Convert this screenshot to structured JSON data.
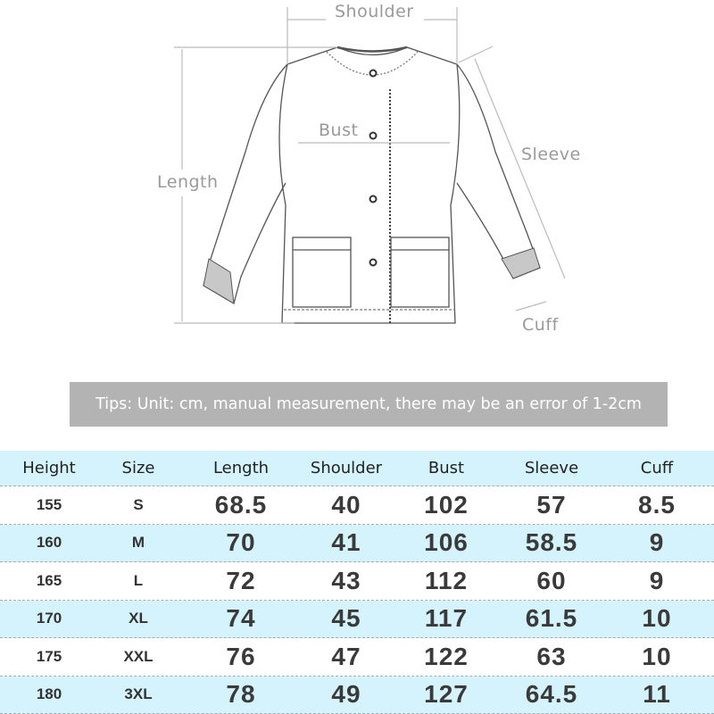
{
  "diagram": {
    "labels": {
      "shoulder": "Shoulder",
      "bust": "Bust",
      "length": "Length",
      "sleeve": "Sleeve",
      "cuff": "Cuff"
    }
  },
  "tips": "Tips: Unit: cm, manual measurement, there may be an error of 1-2cm",
  "table": {
    "headers": [
      "Height",
      "Size",
      "Length",
      "Shoulder",
      "Bust",
      "Sleeve",
      "Cuff"
    ],
    "rows": [
      [
        "155",
        "S",
        "68.5",
        "40",
        "102",
        "57",
        "8.5"
      ],
      [
        "160",
        "M",
        "70",
        "41",
        "106",
        "58.5",
        "9"
      ],
      [
        "165",
        "L",
        "72",
        "43",
        "112",
        "60",
        "9"
      ],
      [
        "170",
        "XL",
        "74",
        "45",
        "117",
        "61.5",
        "10"
      ],
      [
        "175",
        "XXL",
        "76",
        "47",
        "122",
        "63",
        "10"
      ],
      [
        "180",
        "3XL",
        "78",
        "49",
        "127",
        "64.5",
        "11"
      ]
    ]
  },
  "colors": {
    "row_highlight": "#d4f3fc",
    "tips_background": "#b3b3b3",
    "label_gray": "#9a9a9a"
  }
}
